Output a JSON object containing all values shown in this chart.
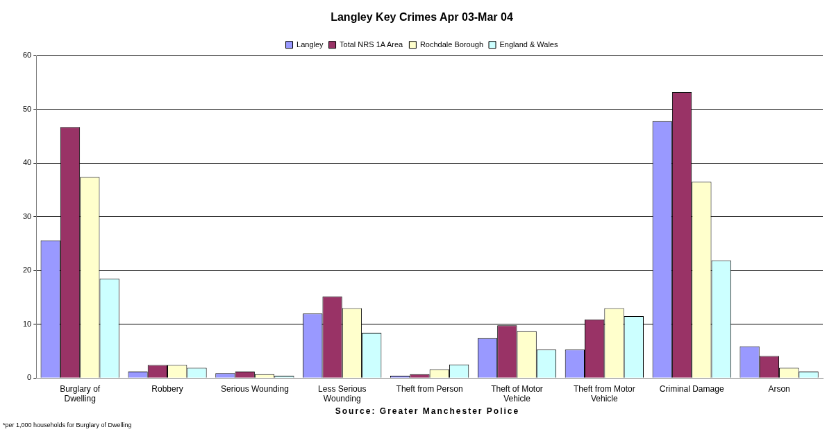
{
  "chart_data": {
    "type": "bar",
    "title": "Langley Key Crimes Apr 03-Mar 04",
    "categories": [
      "Burglary of Dwelling",
      "Robbery",
      "Serious Wounding",
      "Less Serious Wounding",
      "Theft from Person",
      "Theft of Motor Vehicle",
      "Theft from Motor Vehicle",
      "Criminal Damage",
      "Arson"
    ],
    "series": [
      {
        "name": "Langley",
        "color": "#9999ff",
        "values": [
          25.6,
          1.2,
          0.9,
          12.0,
          0.4,
          7.4,
          5.3,
          47.8,
          5.9
        ]
      },
      {
        "name": "Total NRS 1A Area",
        "color": "#993366",
        "values": [
          46.7,
          2.4,
          1.2,
          15.2,
          0.7,
          9.8,
          10.9,
          53.2,
          4.1
        ]
      },
      {
        "name": "Rochdale Borough",
        "color": "#ffffcc",
        "values": [
          37.4,
          2.4,
          0.7,
          13.0,
          1.6,
          8.7,
          13.0,
          36.5,
          1.9
        ]
      },
      {
        "name": "England & Wales",
        "color": "#ccffff",
        "values": [
          18.5,
          1.9,
          0.4,
          8.4,
          2.5,
          5.3,
          11.5,
          21.9,
          1.2
        ]
      }
    ],
    "ylim": [
      0,
      60
    ],
    "yticks": [
      0,
      10,
      20,
      30,
      40,
      50,
      60
    ],
    "grid": "y",
    "legend": "top",
    "annotations": [
      "Source: Greater Manchester Police",
      "*per 1,000 households for Burglary of Dwelling"
    ]
  }
}
